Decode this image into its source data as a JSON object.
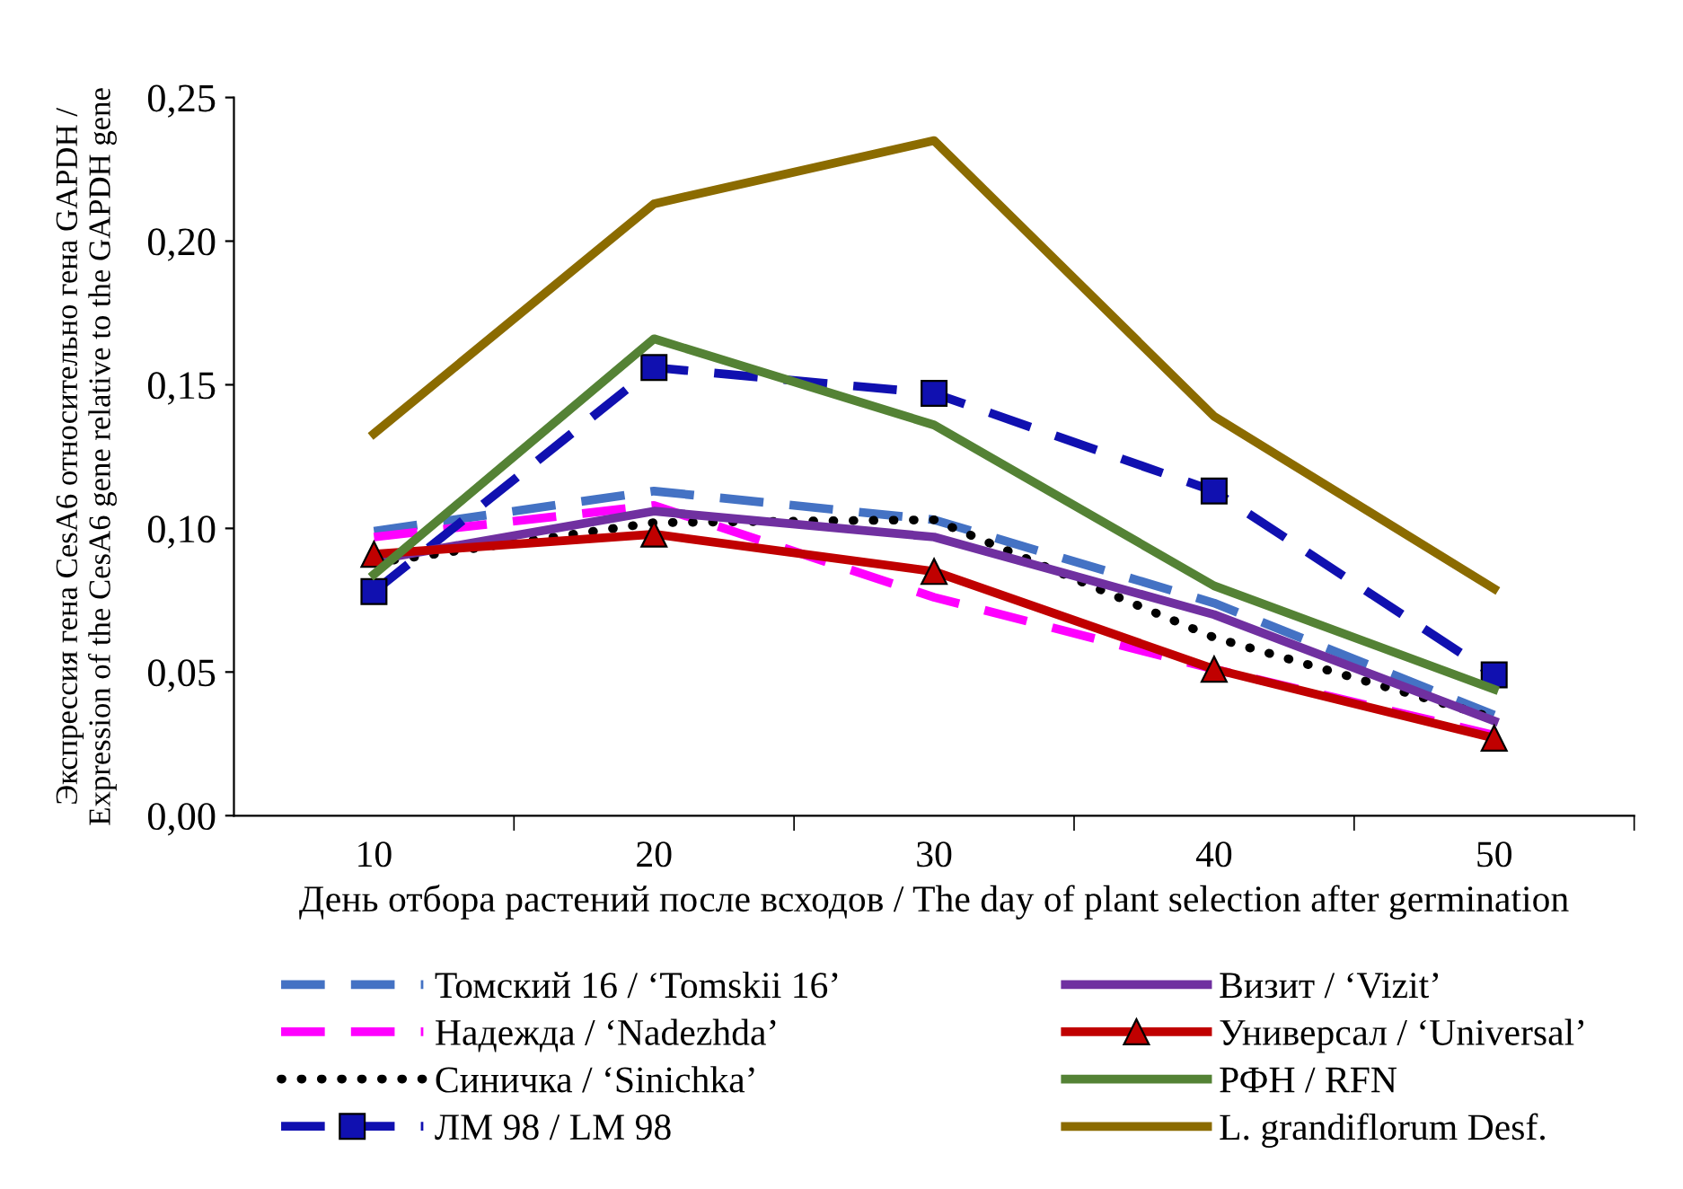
{
  "chart_data": {
    "type": "line",
    "xlabel": "День отбора растений после всходов / The day of plant selection after germination",
    "ylabel": "Экспрессия гена CesA6 относительно гена GAPDH /\nExpression of the CesA6 gene relative to the GAPDH gene",
    "categories": [
      "10",
      "20",
      "30",
      "40",
      "50"
    ],
    "ylim": [
      0,
      0.25
    ],
    "yticks": [
      {
        "value": 0,
        "label": "0,00"
      },
      {
        "value": 0.05,
        "label": "0,05"
      },
      {
        "value": 0.1,
        "label": "0,10"
      },
      {
        "value": 0.15,
        "label": "0,15"
      },
      {
        "value": 0.2,
        "label": "0,20"
      },
      {
        "value": 0.25,
        "label": "0,25"
      }
    ],
    "grid": false,
    "legend": "bottom",
    "series": [
      {
        "name": "Томский 16 / ‘Tomskii 16’",
        "color": "#4472c4",
        "line_style": "dashed",
        "marker": "none",
        "values": [
          0.099,
          0.113,
          0.103,
          0.074,
          0.035
        ]
      },
      {
        "name": "Надежда / ‘Nadezhda’",
        "color": "#ff00ff",
        "line_style": "dashed",
        "marker": "none",
        "values": [
          0.097,
          0.108,
          0.076,
          0.051,
          0.028
        ]
      },
      {
        "name": "Синичка / ‘Sinichka’",
        "color": "#000000",
        "line_style": "dotted",
        "marker": "none",
        "values": [
          0.088,
          0.102,
          0.103,
          0.062,
          0.034
        ]
      },
      {
        "name": "ЛМ 98 / LM 98",
        "color": "#1010b0",
        "line_style": "dashed",
        "marker": "square",
        "values": [
          0.078,
          0.156,
          0.147,
          0.113,
          0.049
        ]
      },
      {
        "name": "Визит / ‘Vizit’",
        "color": "#7030a0",
        "line_style": "solid",
        "marker": "none",
        "values": [
          0.089,
          0.106,
          0.097,
          0.07,
          0.033
        ]
      },
      {
        "name": "Универсал / ‘Universal’",
        "color": "#c00000",
        "line_style": "solid",
        "marker": "triangle",
        "values": [
          0.091,
          0.098,
          0.085,
          0.051,
          0.027
        ]
      },
      {
        "name": "РФН / RFN",
        "color": "#548235",
        "line_style": "solid",
        "marker": "none",
        "values": [
          0.084,
          0.166,
          0.136,
          0.08,
          0.044
        ]
      },
      {
        "name": "L. grandiflorum Desf.",
        "color": "#8b6b00",
        "line_style": "solid",
        "marker": "none",
        "values": [
          0.133,
          0.213,
          0.235,
          0.139,
          0.079
        ]
      }
    ]
  }
}
